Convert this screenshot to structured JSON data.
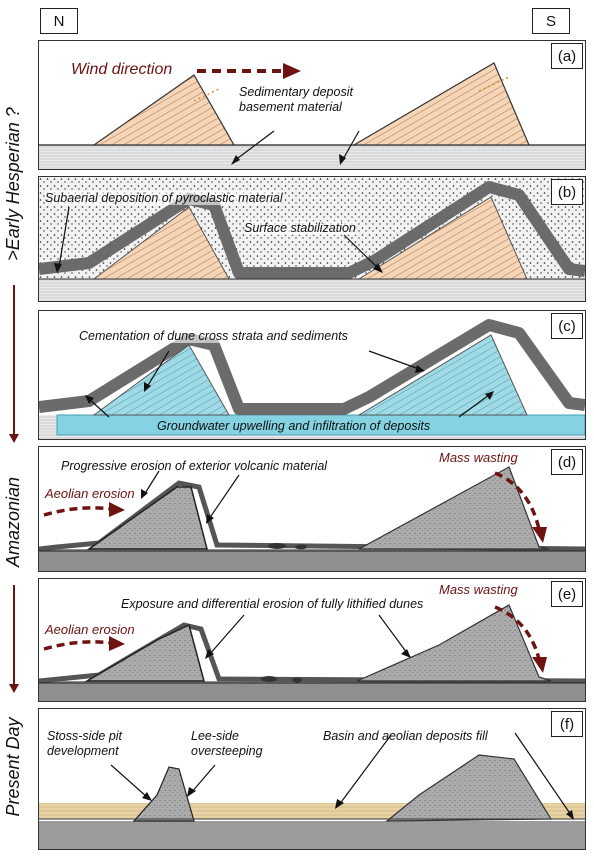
{
  "orientation": {
    "north": "N",
    "south": "S"
  },
  "eras": {
    "early": ">Early Hesperian ?",
    "middle": "Amazonian",
    "late": "Present Day"
  },
  "colors": {
    "arrow_red": "#6e1212",
    "groundwater": "#84d2e2",
    "dune_orange": "#f3c49a",
    "ash_grey": "#6b6b6b",
    "rock_grey": "#a9a9a9",
    "fill_sand": "#e7d2a4"
  },
  "panels": {
    "a": {
      "label": "(a)",
      "wind": "Wind direction",
      "deposit_line1": "Sedimentary deposit",
      "deposit_line2": "basement material"
    },
    "b": {
      "label": "(b)",
      "pyroclastic": "Subaerial deposition of pyroclastic material",
      "stabilization": "Surface stabilization"
    },
    "c": {
      "label": "(c)",
      "cementation": "Cementation of dune cross strata and sediments",
      "groundwater": "Groundwater upwelling and infiltration of deposits"
    },
    "d": {
      "label": "(d)",
      "progressive": "Progressive erosion of exterior volcanic material",
      "mass_wasting": "Mass wasting",
      "aeolian": "Aeolian erosion"
    },
    "e": {
      "label": "(e)",
      "exposure": "Exposure and differential erosion of fully lithified dunes",
      "mass_wasting": "Mass wasting",
      "aeolian": "Aeolian erosion"
    },
    "f": {
      "label": "(f)",
      "stoss_line1": "Stoss-side pit",
      "stoss_line2": "development",
      "lee_line1": "Lee-side",
      "lee_line2": "oversteeping",
      "basin": "Basin and aeolian deposits fill"
    }
  }
}
